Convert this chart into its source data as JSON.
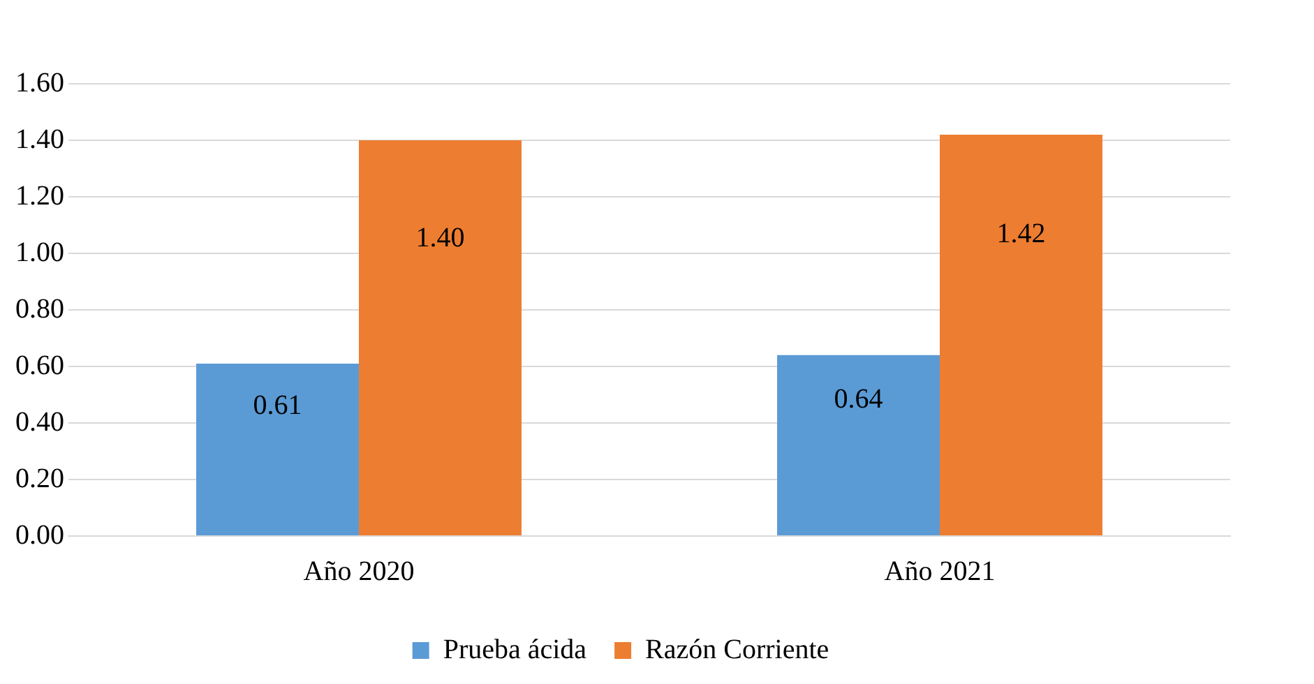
{
  "chart_data": {
    "type": "bar",
    "categories": [
      "Año 2020",
      "Año 2021"
    ],
    "series": [
      {
        "name": "Prueba ácida",
        "color": "#5b9bd5",
        "values": [
          0.61,
          0.64
        ],
        "value_labels": [
          "0.61",
          "0.64"
        ]
      },
      {
        "name": "Razón Corriente",
        "color": "#ed7d31",
        "values": [
          1.4,
          1.42
        ],
        "value_labels": [
          "1.40",
          "1.42"
        ]
      }
    ],
    "ylim": [
      0,
      1.6
    ],
    "yticks": [
      {
        "value": 0,
        "label": "0.00"
      },
      {
        "value": 0.2,
        "label": "0.20"
      },
      {
        "value": 0.4,
        "label": "0.40"
      },
      {
        "value": 0.6,
        "label": "0.60"
      },
      {
        "value": 0.8,
        "label": "0.80"
      },
      {
        "value": 1,
        "label": "1.00"
      },
      {
        "value": 1.2,
        "label": "1.20"
      },
      {
        "value": 1.4,
        "label": "1.40"
      },
      {
        "value": 1.6,
        "label": "1.60"
      }
    ],
    "grid": "y",
    "legend": "bottom"
  }
}
